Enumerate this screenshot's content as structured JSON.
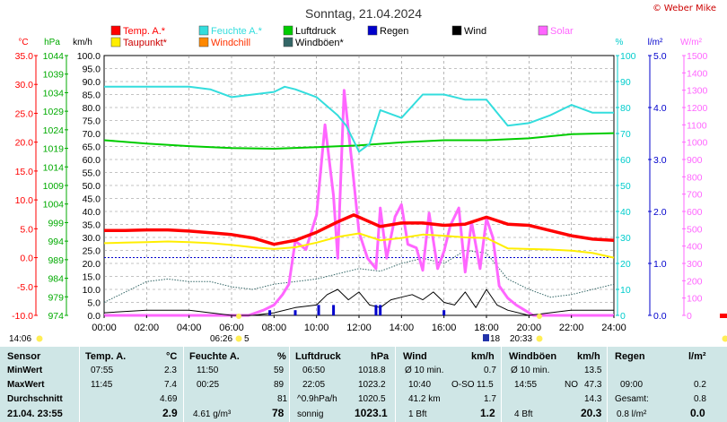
{
  "chart_data": {
    "type": "line",
    "title": "Sonntag, 21.04.2024",
    "copyright": "Weber Mike",
    "x_ticks": [
      "00:00",
      "02:00",
      "04:00",
      "06:00",
      "08:00",
      "10:00",
      "12:00",
      "14:00",
      "16:00",
      "18:00",
      "20:00",
      "22:00",
      "24:00"
    ],
    "xlim": [
      0,
      24
    ],
    "grid": true,
    "axes": {
      "temp": {
        "unit": "°C",
        "ylim": [
          -10,
          35
        ],
        "ticks": [
          "35.0",
          "30.0",
          "25.0",
          "20.0",
          "15.0",
          "10.0",
          "5.0",
          "0.0",
          "-5.0",
          "-10.0"
        ],
        "color": "#ff0000"
      },
      "pressure": {
        "unit": "hPa",
        "ylim": [
          974,
          1044
        ],
        "ticks": [
          "1044",
          "1039",
          "1034",
          "1029",
          "1024",
          "1019",
          "1014",
          "1009",
          "1004",
          "999",
          "994",
          "989",
          "984",
          "979",
          "974"
        ],
        "color": "#00cc00"
      },
      "wind": {
        "unit": "km/h",
        "ylim": [
          0,
          100
        ],
        "ticks": [
          "100.0",
          "95.0",
          "90.0",
          "85.0",
          "80.0",
          "75.0",
          "70.0",
          "65.0",
          "60.0",
          "55.0",
          "50.0",
          "45.0",
          "40.0",
          "35.0",
          "30.0",
          "25.0",
          "20.0",
          "15.0",
          "10.0",
          "5.0",
          "0.0"
        ],
        "color": "#000000"
      },
      "humidity": {
        "unit": "%",
        "ylim": [
          0,
          100
        ],
        "ticks": [
          "100",
          "90",
          "80",
          "70",
          "60",
          "50",
          "40",
          "30",
          "20",
          "10",
          "0"
        ],
        "color": "#00cccc"
      },
      "rain": {
        "unit": "l/m²",
        "ylim": [
          0,
          5
        ],
        "ticks": [
          "5.0",
          "4.0",
          "3.0",
          "2.0",
          "1.0",
          "0.0"
        ],
        "color": "#0000cc"
      },
      "solar": {
        "unit": "W/m²",
        "ylim": [
          0,
          1500
        ],
        "ticks": [
          "1500",
          "1400",
          "1300",
          "1200",
          "1100",
          "1000",
          "900",
          "800",
          "700",
          "600",
          "500",
          "400",
          "300",
          "200",
          "100",
          "0"
        ],
        "color": "#ff66ff"
      }
    },
    "legend": [
      {
        "name": "Temp. A.*",
        "color": "#ff0000"
      },
      {
        "name": "Feuchte A.*",
        "color": "#33dddd"
      },
      {
        "name": "Luftdruck",
        "color": "#00cc00"
      },
      {
        "name": "Regen",
        "color": "#0000cc"
      },
      {
        "name": "Wind",
        "color": "#000000"
      },
      {
        "name": "Solar",
        "color": "#ff66ff"
      },
      {
        "name": "Taupunkt*",
        "color": "#ffee00"
      },
      {
        "name": "Windchill",
        "color": "#ff8800"
      },
      {
        "name": "Windböen*",
        "color": "#336666"
      }
    ],
    "series": [
      {
        "name": "Temp. A.*",
        "axis": "temp",
        "color": "#ff0000",
        "x": [
          0,
          1,
          2,
          3,
          4,
          5,
          6,
          7,
          8,
          9,
          10,
          11,
          11.75,
          12,
          13,
          14,
          15,
          16,
          17,
          18,
          19,
          20,
          21,
          22,
          23,
          24
        ],
        "y": [
          4.7,
          4.7,
          4.8,
          4.8,
          4.6,
          4.3,
          4.0,
          3.4,
          2.3,
          3.0,
          4.4,
          6.2,
          7.4,
          7.0,
          5.4,
          6.0,
          6.0,
          5.6,
          5.8,
          7.0,
          5.8,
          5.6,
          4.7,
          3.8,
          3.2,
          3.0
        ]
      },
      {
        "name": "Taupunkt*",
        "axis": "temp",
        "color": "#ffee00",
        "x": [
          0,
          1,
          2,
          3,
          4,
          5,
          6,
          7,
          8,
          9,
          10,
          11,
          12,
          13,
          14,
          15,
          16,
          17,
          18,
          19,
          20,
          21,
          22,
          23,
          24
        ],
        "y": [
          2.5,
          2.6,
          2.7,
          2.8,
          2.7,
          2.5,
          2.2,
          1.8,
          1.5,
          1.8,
          2.6,
          3.6,
          4.2,
          3.0,
          3.4,
          4.0,
          3.8,
          3.5,
          3.4,
          1.6,
          1.5,
          1.4,
          1.2,
          0.8,
          0.0
        ]
      },
      {
        "name": "Feuchte A.*",
        "axis": "humidity",
        "color": "#33dddd",
        "x": [
          0,
          1,
          2,
          3,
          3.5,
          4,
          5,
          6,
          7,
          8,
          8.5,
          9,
          10,
          11,
          11.4,
          12,
          12.5,
          13,
          14,
          15,
          16,
          17,
          18,
          19,
          20,
          21,
          22,
          23,
          24
        ],
        "y": [
          88,
          88,
          88,
          88,
          88,
          88,
          87,
          84,
          85,
          86,
          88,
          87,
          84,
          77,
          73,
          63,
          66,
          79,
          76,
          85,
          85,
          83,
          83,
          73,
          74,
          77,
          81,
          78,
          78
        ]
      },
      {
        "name": "Luftdruck",
        "axis": "pressure",
        "color": "#00cc00",
        "x": [
          0,
          2,
          4,
          6,
          8,
          10,
          12,
          14,
          16,
          18,
          20,
          22,
          24
        ],
        "y": [
          1021.2,
          1020.3,
          1019.6,
          1019.1,
          1018.9,
          1019.3,
          1019.8,
          1020.6,
          1021.2,
          1021.2,
          1021.7,
          1022.8,
          1023.1
        ]
      },
      {
        "name": "Solar",
        "axis": "solar",
        "color": "#ff66ff",
        "x": [
          0,
          6.8,
          7.5,
          8,
          8.4,
          8.7,
          9,
          9.5,
          10,
          10.4,
          10.8,
          11,
          11.3,
          11.7,
          12,
          12.4,
          12.8,
          13,
          13.3,
          13.7,
          14,
          14.3,
          14.7,
          15,
          15.3,
          15.7,
          16,
          16.3,
          16.7,
          17,
          17.3,
          17.7,
          18,
          18.3,
          18.6,
          19,
          19.4,
          19.8,
          20.2,
          24
        ],
        "y": [
          0,
          0,
          30,
          60,
          120,
          180,
          430,
          380,
          580,
          1100,
          690,
          330,
          1300,
          840,
          480,
          330,
          270,
          620,
          330,
          570,
          640,
          410,
          390,
          260,
          590,
          270,
          370,
          520,
          620,
          250,
          540,
          270,
          560,
          450,
          170,
          100,
          60,
          30,
          0,
          0
        ]
      },
      {
        "name": "Wind",
        "axis": "wind",
        "color": "#000000",
        "x": [
          0,
          2,
          4,
          6,
          7,
          8,
          9,
          10,
          10.5,
          11,
          11.5,
          12,
          12.5,
          13,
          13.5,
          14,
          14.5,
          15,
          15.5,
          16,
          16.5,
          17,
          17.5,
          18,
          18.5,
          19,
          20,
          22,
          24
        ],
        "y": [
          1,
          2,
          2,
          0,
          0,
          1,
          3,
          4,
          8,
          10,
          6,
          9,
          4,
          3,
          6,
          7,
          8,
          6,
          9,
          5,
          4,
          9,
          3,
          10,
          4,
          2,
          0,
          2,
          2
        ]
      },
      {
        "name": "Windböen*",
        "axis": "wind",
        "color": "#336666",
        "x": [
          0,
          1,
          2,
          3,
          4,
          5,
          6,
          7,
          8,
          9,
          10,
          11,
          12,
          13,
          14,
          15,
          16,
          17,
          18,
          19,
          20,
          21,
          22,
          23,
          24
        ],
        "y": [
          5,
          9,
          13,
          14,
          13,
          13,
          11,
          10,
          12,
          13,
          14,
          16,
          18,
          17,
          20,
          22,
          20,
          25,
          24,
          14,
          10,
          7,
          8,
          10,
          12
        ]
      }
    ],
    "rain_marks": [
      {
        "x": 7.8,
        "y": 0.1
      },
      {
        "x": 9.0,
        "y": 0.1
      },
      {
        "x": 10.1,
        "y": 0.2
      },
      {
        "x": 10.8,
        "y": 0.2
      },
      {
        "x": 12.8,
        "y": 0.2
      },
      {
        "x": 13.0,
        "y": 0.2
      },
      {
        "x": 16.0,
        "y": 0.1
      }
    ],
    "sun_moon": {
      "left_time": "14:06",
      "sunrise": "06:26",
      "sunrise_arrow": "5",
      "moon_mark": "18",
      "sunset": "20:33"
    }
  },
  "stats": {
    "headers": {
      "sensor": "Sensor",
      "temp": "Temp. A.",
      "temp_unit": "°C",
      "hum": "Feuchte A.",
      "hum_unit": "%",
      "press": "Luftdruck",
      "press_unit": "hPa",
      "wind": "Wind",
      "wind_unit": "km/h",
      "gust": "Windböen",
      "gust_unit": "km/h",
      "rain": "Regen",
      "rain_unit": "l/m²"
    },
    "rows": {
      "min": "MinWert",
      "max": "MaxWert",
      "avg": "Durchschnitt",
      "now": "21.04. 23:55"
    },
    "temp": {
      "min_time": "07:55",
      "min": "2.3",
      "max_time": "11:45",
      "max": "7.4",
      "avg": "4.69",
      "now": "2.9"
    },
    "hum": {
      "min_time": "11:50",
      "min": "59",
      "max_time": "00:25",
      "max": "89",
      "avg": "81",
      "now_abs": "4.61 g/m³",
      "now": "78"
    },
    "press": {
      "min_time": "06:50",
      "min": "1018.8",
      "max_time": "22:05",
      "max": "1023.2",
      "trend": "^0.9hPa/h",
      "avg": "1020.5",
      "weather": "sonnig",
      "now": "1023.1"
    },
    "wind": {
      "r1_label": "Ø 10 min.",
      "r1": "0.7",
      "r2_time": "10:40",
      "r2_dir": "O-SO",
      "r2": "11.5",
      "r3_km": "41.2 km",
      "r3": "1.7",
      "bft": "1 Bft",
      "now": "1.2"
    },
    "gust": {
      "r1_label": "Ø 10 min.",
      "r1": "13.5",
      "r2_time": "14:55",
      "r2_dir": "NO",
      "r2": "47.3",
      "r3": "14.3",
      "bft": "4 Bft",
      "now": "20.3"
    },
    "rain": {
      "r2_time": "09:00",
      "r2": "0.2",
      "r3_label": "Gesamt:",
      "r3": "0.8",
      "rate": "0.8 l/m²",
      "now": "0.0"
    }
  }
}
